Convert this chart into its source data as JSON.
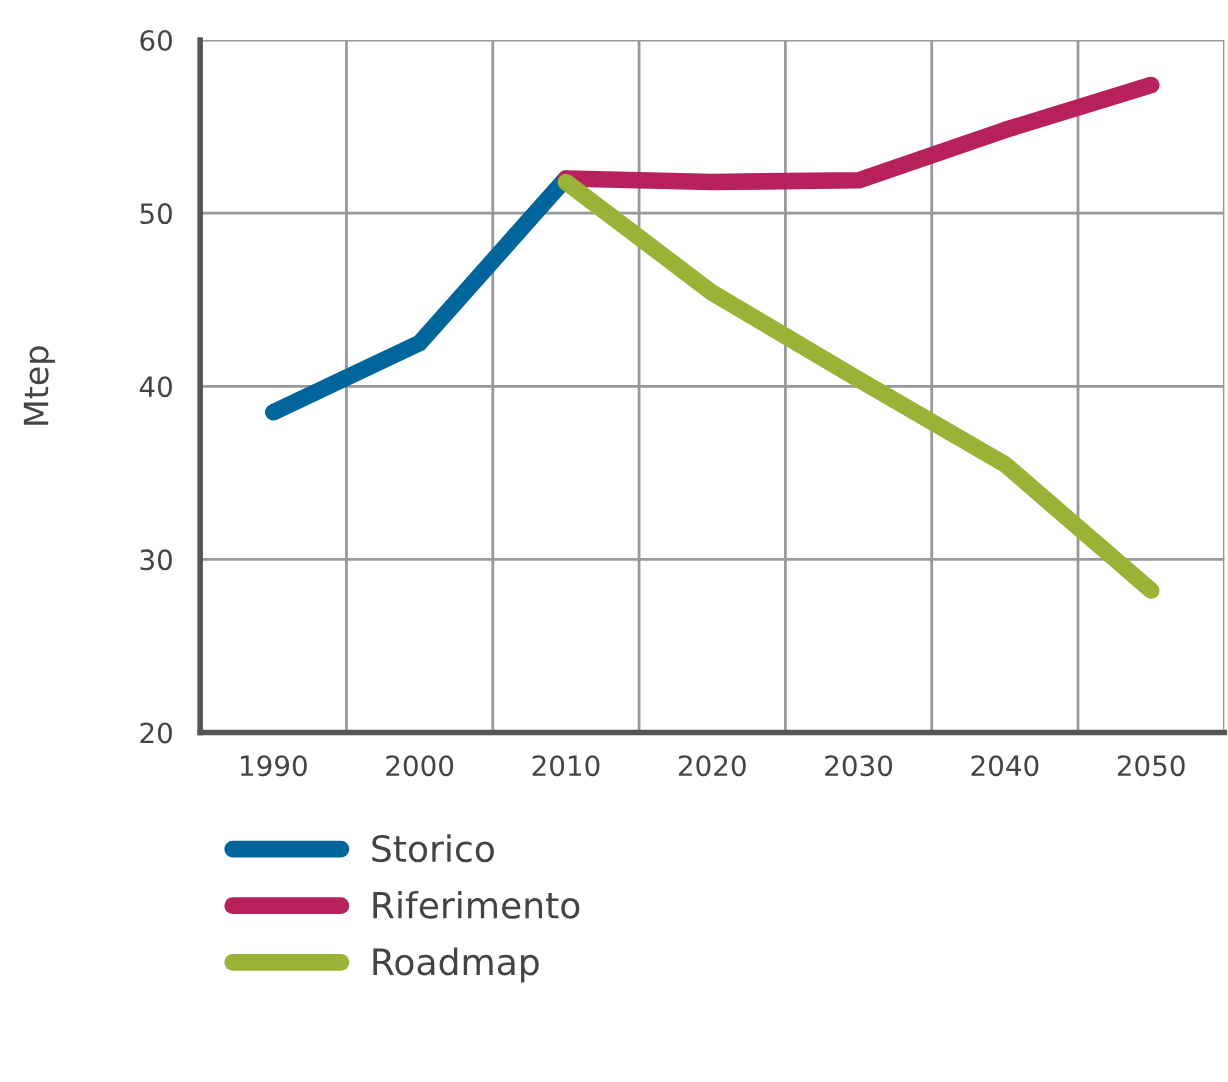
{
  "chart_data": {
    "type": "line",
    "ylabel": "Mtep",
    "categories": [
      "1990",
      "2000",
      "2010",
      "2020",
      "2030",
      "2040",
      "2050"
    ],
    "series": [
      {
        "name": "Storico",
        "color": "#00659a",
        "values": [
          38.5,
          42.5,
          52,
          null,
          null,
          null,
          null
        ]
      },
      {
        "name": "Riferimento",
        "color": "#b8225c",
        "values": [
          null,
          null,
          52,
          51.8,
          51.9,
          54.8,
          57.4
        ]
      },
      {
        "name": "Roadmap",
        "color": "#9ab336",
        "values": [
          null,
          null,
          51.8,
          45.4,
          40.4,
          35.5,
          28.2
        ]
      }
    ],
    "ylim": [
      20,
      60
    ],
    "yticks": [
      20,
      30,
      40,
      50,
      60
    ],
    "grid": true,
    "legend": "bottom left",
    "line_style": "solid",
    "marker": "none"
  }
}
